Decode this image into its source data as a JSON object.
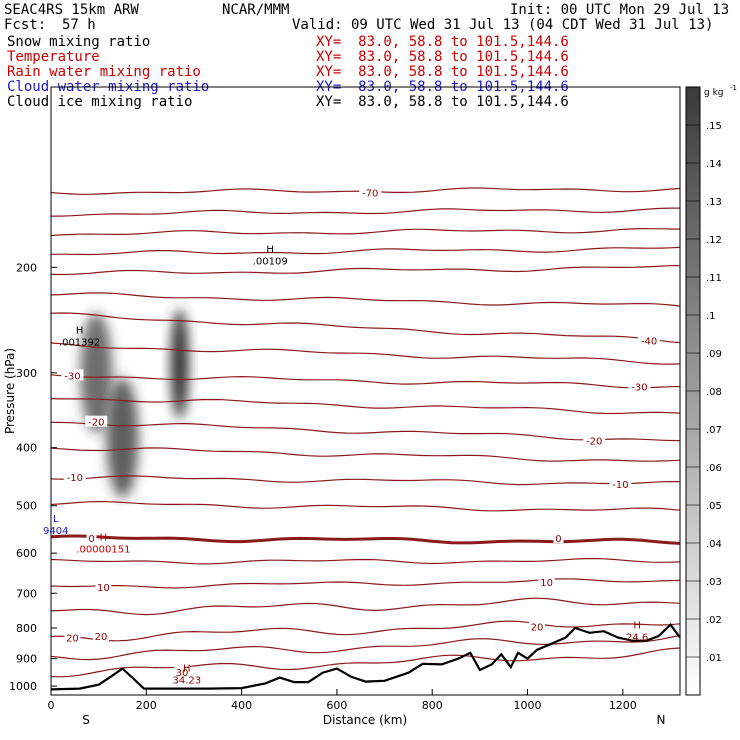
{
  "header": {
    "model": "SEAC4RS 15km ARW",
    "org": "NCAR/MMM",
    "init": "Init: 00 UTC Mon 29 Jul 13",
    "fcst_label": "Fcst:",
    "fcst_value": "57 h",
    "valid": "Valid: 09 UTC Wed 31 Jul 13 (04 CDT Wed 31 Jul 13)"
  },
  "fields": [
    {
      "name": "Snow mixing ratio",
      "xy": "XY=  83.0, 58.8 to 101.5,144.6",
      "color": "#000000"
    },
    {
      "name": "Temperature",
      "xy": "XY=  83.0, 58.8 to 101.5,144.6",
      "color": "#cc0000"
    },
    {
      "name": "Rain water mixing ratio",
      "xy": "XY=  83.0, 58.8 to 101.5,144.6",
      "color": "#cc0000"
    },
    {
      "name": "Cloud water mixing ratio",
      "xy": "XY=  83.0, 58.8 to 101.5,144.6",
      "color": "#1a1acc"
    },
    {
      "name": "Cloud ice mixing ratio",
      "xy": "XY=  83.0, 58.8 to 101.5,144.6",
      "color": "#000000"
    }
  ],
  "chart_data": {
    "type": "contour cross-section",
    "xlabel": "Distance (km)",
    "ylabel": "Pressure (hPa)",
    "xlim": [
      0,
      1320
    ],
    "ylim": [
      1035,
      100
    ],
    "y_scale": "log",
    "x_ticks": [
      0,
      200,
      400,
      600,
      800,
      1000,
      1200
    ],
    "y_ticks": [
      200,
      300,
      400,
      500,
      600,
      700,
      800,
      900,
      1000
    ],
    "endpoints": {
      "left": "S",
      "right": "N"
    },
    "colorbar": {
      "unit_label": "g kg",
      "unit_exp": "-1",
      "ticks": [
        ".01",
        ".02",
        ".03",
        ".04",
        ".05",
        ".06",
        ".07",
        ".08",
        ".09",
        ".1",
        ".11",
        ".12",
        ".13",
        ".14",
        ".15"
      ],
      "range": [
        0,
        0.16
      ]
    },
    "temperature_contour_labels": [
      {
        "text": "-70",
        "x": 670,
        "p": 150
      },
      {
        "text": "-40",
        "x": 1255,
        "p": 265
      },
      {
        "text": "-30",
        "x": 45,
        "p": 303
      },
      {
        "text": "-30",
        "x": 1235,
        "p": 316
      },
      {
        "text": "-20",
        "x": 95,
        "p": 362
      },
      {
        "text": "-20",
        "x": 1140,
        "p": 389
      },
      {
        "text": "-10",
        "x": 50,
        "p": 448
      },
      {
        "text": "-10",
        "x": 1195,
        "p": 460
      },
      {
        "text": "0",
        "x": 85,
        "p": 566
      },
      {
        "text": "0",
        "x": 1065,
        "p": 566
      },
      {
        "text": "10",
        "x": 110,
        "p": 683
      },
      {
        "text": "10",
        "x": 1040,
        "p": 670
      },
      {
        "text": "20",
        "x": 45,
        "p": 830
      },
      {
        "text": "20",
        "x": 105,
        "p": 825
      },
      {
        "text": "20",
        "x": 1020,
        "p": 795
      },
      {
        "text": "30",
        "x": 275,
        "p": 948
      }
    ],
    "extrema": [
      {
        "text": "H",
        "value": ".00109",
        "x": 460,
        "p": 198,
        "color": "#000000"
      },
      {
        "text": "H",
        "value": ".001392",
        "x": 60,
        "p": 270,
        "color": "#000000"
      },
      {
        "text": "H",
        "value": ".00000151",
        "x": 110,
        "p": 598,
        "color": "#cc0000"
      },
      {
        "text": "L",
        "value": "9404",
        "x": 10,
        "p": 557,
        "color": "#1a1acc"
      },
      {
        "text": "H",
        "value": "34.23",
        "x": 285,
        "p": 990,
        "color": "#8b0000"
      },
      {
        "text": "H",
        "value": "24.6",
        "x": 1230,
        "p": 840,
        "color": "#8b0000"
      }
    ],
    "isotherms": [
      {
        "t": -70,
        "pl": 150,
        "pr": 148
      },
      {
        "t": -65,
        "pl": 163,
        "pr": 160
      },
      {
        "t": -60,
        "pl": 176,
        "pr": 173
      },
      {
        "t": -55,
        "pl": 190,
        "pr": 186
      },
      {
        "t": -50,
        "pl": 205,
        "pr": 200
      },
      {
        "t": -45,
        "pl": 222,
        "pr": 232
      },
      {
        "t": -40,
        "pl": 240,
        "pr": 265
      },
      {
        "t": -35,
        "pl": 270,
        "pr": 288
      },
      {
        "t": -30,
        "pl": 303,
        "pr": 316
      },
      {
        "t": -25,
        "pl": 330,
        "pr": 350
      },
      {
        "t": -20,
        "pl": 362,
        "pr": 389
      },
      {
        "t": -15,
        "pl": 400,
        "pr": 422
      },
      {
        "t": -10,
        "pl": 448,
        "pr": 460
      },
      {
        "t": -5,
        "pl": 495,
        "pr": 510
      },
      {
        "t": 0,
        "pl": 566,
        "pr": 575
      },
      {
        "t": 5,
        "pl": 620,
        "pr": 618
      },
      {
        "t": 10,
        "pl": 683,
        "pr": 665
      },
      {
        "t": 15,
        "pl": 750,
        "pr": 720
      },
      {
        "t": 20,
        "pl": 830,
        "pr": 780
      },
      {
        "t": 25,
        "pl": 890,
        "pr": 830
      },
      {
        "t": 30,
        "pl": 948,
        "pr": 880
      }
    ],
    "terrain": [
      [
        0,
        1013
      ],
      [
        60,
        1010
      ],
      [
        100,
        995
      ],
      [
        125,
        965
      ],
      [
        150,
        935
      ],
      [
        175,
        975
      ],
      [
        195,
        1010
      ],
      [
        260,
        1010
      ],
      [
        330,
        1010
      ],
      [
        400,
        1008
      ],
      [
        450,
        990
      ],
      [
        480,
        968
      ],
      [
        510,
        985
      ],
      [
        540,
        985
      ],
      [
        570,
        950
      ],
      [
        600,
        935
      ],
      [
        630,
        965
      ],
      [
        660,
        983
      ],
      [
        700,
        980
      ],
      [
        750,
        950
      ],
      [
        780,
        918
      ],
      [
        820,
        920
      ],
      [
        855,
        900
      ],
      [
        880,
        880
      ],
      [
        900,
        940
      ],
      [
        925,
        920
      ],
      [
        945,
        885
      ],
      [
        965,
        930
      ],
      [
        980,
        880
      ],
      [
        1000,
        900
      ],
      [
        1020,
        870
      ],
      [
        1050,
        850
      ],
      [
        1080,
        830
      ],
      [
        1100,
        800
      ],
      [
        1130,
        815
      ],
      [
        1160,
        810
      ],
      [
        1190,
        830
      ],
      [
        1220,
        840
      ],
      [
        1250,
        840
      ],
      [
        1275,
        825
      ],
      [
        1300,
        790
      ],
      [
        1320,
        830
      ]
    ],
    "snow_cores": [
      {
        "x": 95,
        "p": 300,
        "max": 0.09
      },
      {
        "x": 150,
        "p": 385,
        "max": 0.1
      },
      {
        "x": 270,
        "p": 290,
        "max": 0.14
      }
    ]
  }
}
